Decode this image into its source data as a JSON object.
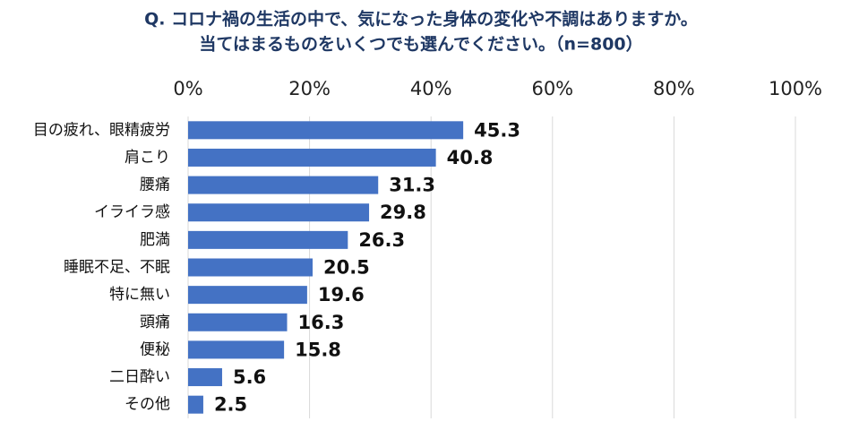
{
  "chart_data": {
    "type": "bar",
    "orientation": "horizontal",
    "title": [
      "Q. コロナ禍の生活の中で、気になった身体の変化や不調はありますか。",
      "当てはまるものをいくつでも選んでください。（n=800）"
    ],
    "categories": [
      "目の疲れ、眼精疲労",
      "肩こり",
      "腰痛",
      "イライラ感",
      "肥満",
      "睡眠不足、不眠",
      "特に無い",
      "頭痛",
      "便秘",
      "二日酔い",
      "その他"
    ],
    "values": [
      45.3,
      40.8,
      31.3,
      29.8,
      26.3,
      20.5,
      19.6,
      16.3,
      15.8,
      5.6,
      2.5
    ],
    "color": "#4472c4",
    "xlim": [
      0,
      100
    ],
    "xticks": [
      {
        "value": 0,
        "label": "0%"
      },
      {
        "value": 20,
        "label": "20%"
      },
      {
        "value": 40,
        "label": "40%"
      },
      {
        "value": 60,
        "label": "60%"
      },
      {
        "value": 80,
        "label": "80%"
      },
      {
        "value": 100,
        "label": "100%"
      }
    ],
    "grid": true
  }
}
